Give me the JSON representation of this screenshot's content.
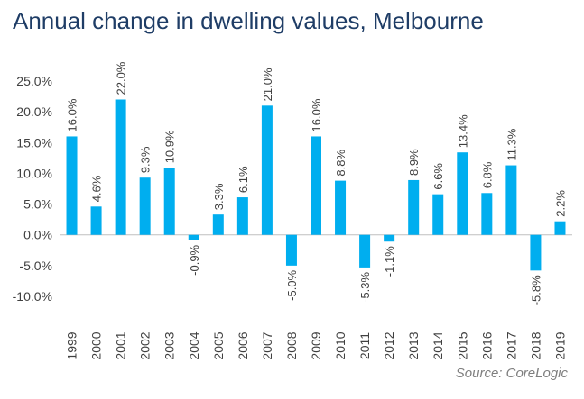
{
  "title": "Annual change in dwelling values, Melbourne",
  "source": "Source: CoreLogic",
  "chart_data": {
    "type": "bar",
    "title": "Annual change in dwelling values, Melbourne",
    "xlabel": "",
    "ylabel": "",
    "categories": [
      "1999",
      "2000",
      "2001",
      "2002",
      "2003",
      "2004",
      "2005",
      "2006",
      "2007",
      "2008",
      "2009",
      "2010",
      "2011",
      "2012",
      "2013",
      "2014",
      "2015",
      "2016",
      "2017",
      "2018",
      "2019"
    ],
    "values": [
      16.0,
      4.6,
      22.0,
      9.3,
      10.9,
      -0.9,
      3.3,
      6.1,
      21.0,
      -5.0,
      16.0,
      8.8,
      -5.3,
      -1.1,
      8.9,
      6.6,
      13.4,
      6.8,
      11.3,
      -5.8,
      2.2
    ],
    "data_labels": [
      "16.0%",
      "4.6%",
      "22.0%",
      "9.3%",
      "10.9%",
      "-0.9%",
      "3.3%",
      "6.1%",
      "21.0%",
      "-5.0%",
      "16.0%",
      "8.8%",
      "-5.3%",
      "-1.1%",
      "8.9%",
      "6.6%",
      "13.4%",
      "6.8%",
      "11.3%",
      "-5.8%",
      "2.2%"
    ],
    "y_ticks": [
      25,
      20,
      15,
      10,
      5,
      0,
      -5,
      -10
    ],
    "y_tick_labels": [
      "25.0%",
      "20.0%",
      "15.0%",
      "10.0%",
      "5.0%",
      "0.0%",
      "-5.0%",
      "-10.0%"
    ],
    "ylim": [
      -10,
      25
    ],
    "grid": false,
    "bar_color": "#00aeef",
    "axis_color": "#bfbfbf"
  }
}
